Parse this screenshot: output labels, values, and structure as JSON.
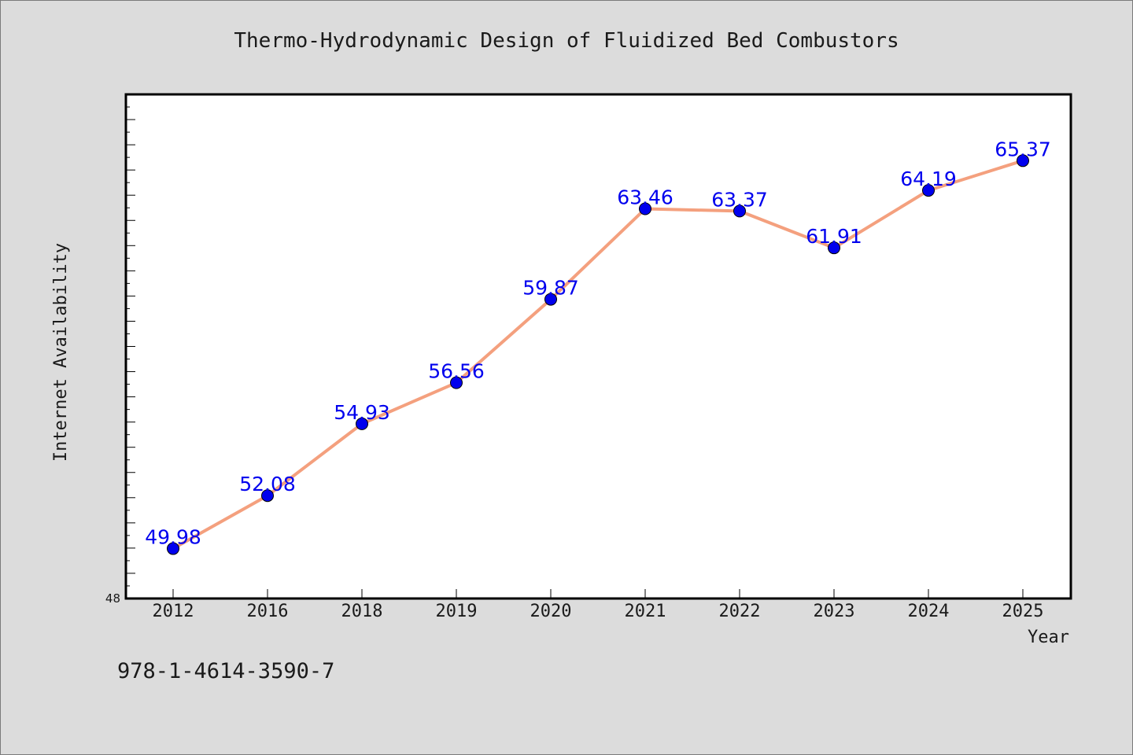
{
  "chart_data": {
    "type": "line",
    "title": "Thermo-Hydrodynamic Design of Fluidized Bed Combustors",
    "xlabel": "Year",
    "ylabel": "Internet Availability",
    "categories": [
      "2012",
      "2016",
      "2018",
      "2019",
      "2020",
      "2021",
      "2022",
      "2023",
      "2024",
      "2025"
    ],
    "values": [
      49.98,
      52.08,
      54.93,
      56.56,
      59.87,
      63.46,
      63.37,
      61.91,
      64.19,
      65.37
    ],
    "data_labels": [
      "49.98",
      "52.08",
      "54.93",
      "56.56",
      "59.87",
      "63.46",
      "63.37",
      "61.91",
      "64.19",
      "65.37"
    ],
    "ylim": [
      48,
      68
    ],
    "y_tick_labels": [
      "48"
    ],
    "y_minor_ticks": [
      48.5,
      49,
      49.5,
      50,
      50.5,
      51,
      51.5,
      52,
      52.5,
      53,
      53.5,
      54,
      54.5,
      55,
      55.5,
      56,
      56.5,
      57,
      57.5,
      58,
      58.5,
      59,
      59.5,
      60,
      60.5,
      61,
      61.5,
      62,
      62.5,
      63,
      63.5,
      64,
      64.5,
      65,
      65.5,
      66,
      66.5,
      67,
      67.5
    ],
    "y_major_ticks": [
      49,
      50,
      51,
      52,
      53,
      54,
      55,
      56,
      57,
      58,
      59,
      60,
      61,
      62,
      63,
      64,
      65,
      66,
      67
    ],
    "grid": false,
    "legend": "none",
    "colors": {
      "line": "#f4a07e",
      "marker": "#0000ee",
      "data_label": "#0000ee",
      "background": "#dcdcdc",
      "plot_background": "#ffffff",
      "frame": "#000000"
    }
  },
  "footer": {
    "isbn": "978-1-4614-3590-7"
  }
}
